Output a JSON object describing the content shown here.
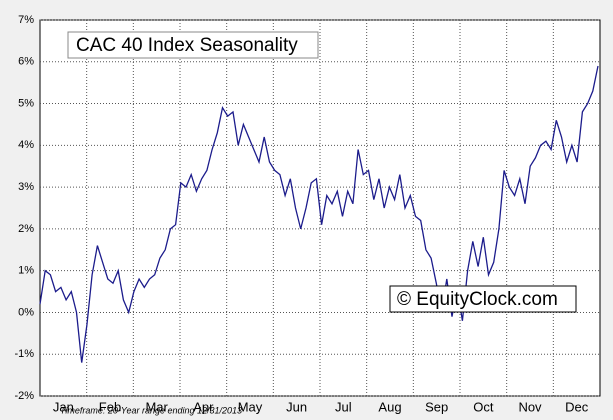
{
  "chart_data": {
    "type": "line",
    "title": "CAC 40 Index Seasonality",
    "watermark": "© EquityClock.com",
    "footnote": "Timeframe: 20-Year range ending 12/31/2013",
    "x_labels": [
      "Jan",
      "Feb",
      "Mar",
      "Apr",
      "May",
      "Jun",
      "Jul",
      "Aug",
      "Sep",
      "Oct",
      "Nov",
      "Dec"
    ],
    "color": "#1c1c8c",
    "values": [
      0.2,
      1.0,
      0.9,
      0.5,
      0.6,
      0.3,
      0.5,
      0.0,
      -1.2,
      -0.3,
      0.9,
      1.6,
      1.2,
      0.8,
      0.7,
      1.0,
      0.3,
      0.0,
      0.5,
      0.8,
      0.6,
      0.8,
      0.9,
      1.3,
      1.5,
      2.0,
      2.1,
      3.1,
      3.0,
      3.3,
      2.9,
      3.2,
      3.4,
      3.9,
      4.3,
      4.9,
      4.7,
      4.8,
      4.0,
      4.5,
      4.2,
      3.9,
      3.6,
      4.2,
      3.6,
      3.4,
      3.3,
      2.8,
      3.2,
      2.5,
      2.0,
      2.5,
      3.1,
      3.2,
      2.1,
      2.8,
      2.6,
      2.9,
      2.3,
      2.9,
      2.6,
      3.9,
      3.3,
      3.4,
      2.7,
      3.2,
      2.5,
      3.0,
      2.7,
      3.3,
      2.5,
      2.8,
      2.3,
      2.2,
      1.5,
      1.3,
      0.7,
      0.0,
      0.8,
      -0.1,
      0.6,
      -0.2,
      1.0,
      1.7,
      1.1,
      1.8,
      0.9,
      1.2,
      2.0,
      3.4,
      3.0,
      2.8,
      3.2,
      2.6,
      3.5,
      3.7,
      4.0,
      4.1,
      3.9,
      4.6,
      4.2,
      3.6,
      4.0,
      3.6,
      4.8,
      5.0,
      5.3,
      5.9
    ],
    "ylim": [
      -2,
      7
    ],
    "yticks": [
      {
        "value": -2,
        "label": "-2%"
      },
      {
        "value": -1,
        "label": "-1%"
      },
      {
        "value": 0,
        "label": "0%"
      },
      {
        "value": 1,
        "label": "1%"
      },
      {
        "value": 2,
        "label": "2%"
      },
      {
        "value": 3,
        "label": "3%"
      },
      {
        "value": 4,
        "label": "4%"
      },
      {
        "value": 5,
        "label": "5%"
      },
      {
        "value": 6,
        "label": "6%"
      },
      {
        "value": 7,
        "label": "7%"
      }
    ],
    "grid": true
  }
}
